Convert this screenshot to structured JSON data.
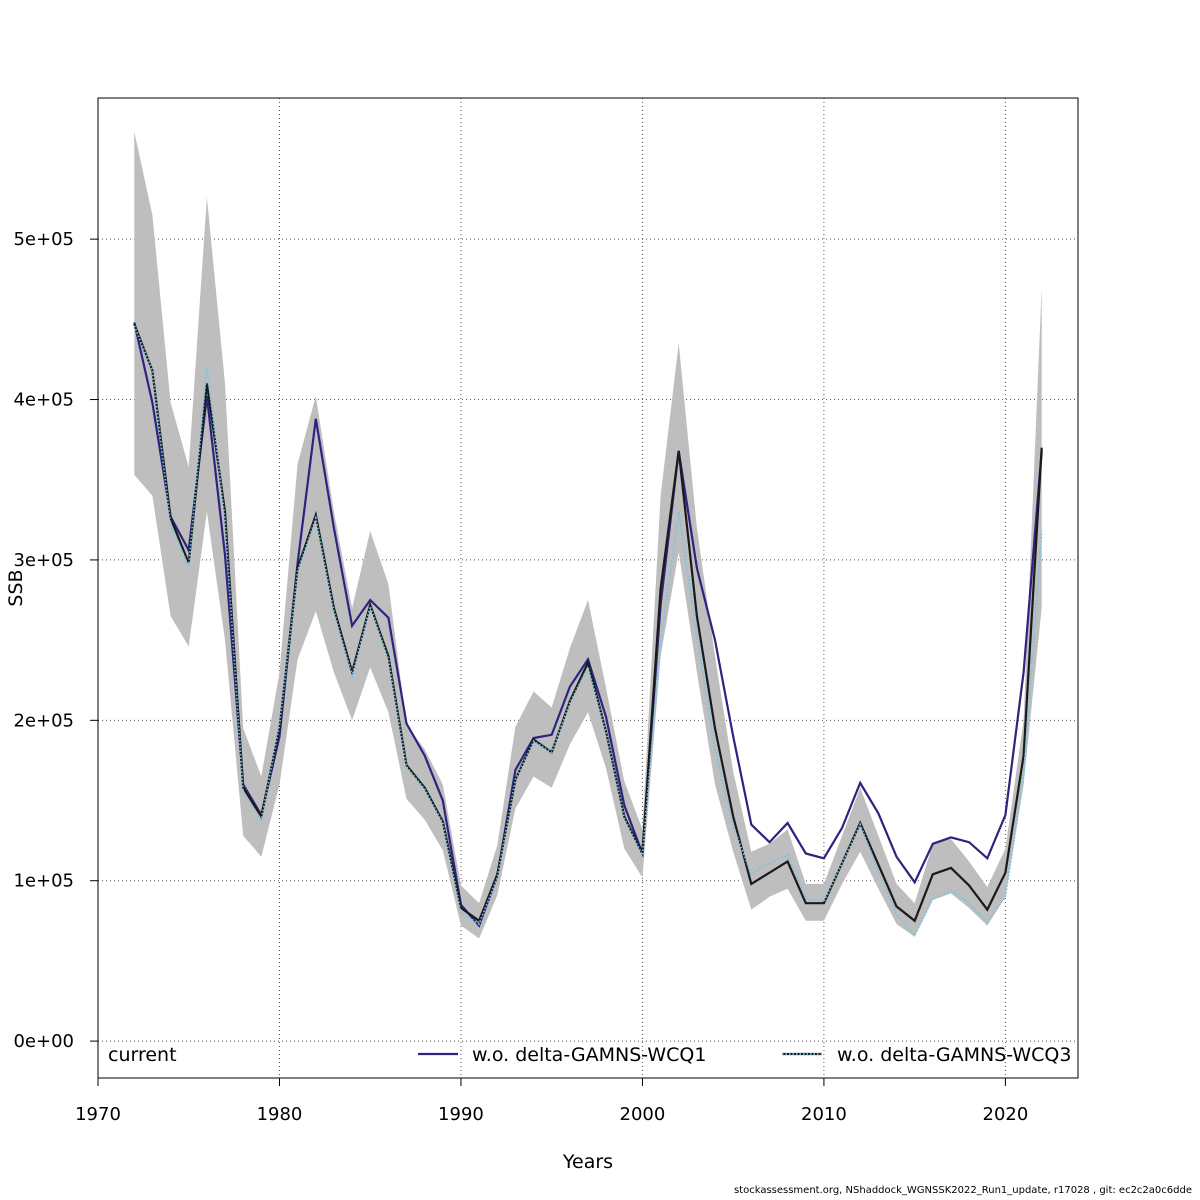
{
  "chart_data": {
    "type": "line",
    "xlabel": "Years",
    "ylabel": "SSB",
    "xlim": [
      1970,
      2024
    ],
    "ylim": [
      -23000,
      588000
    ],
    "x_ticks": [
      1970,
      1980,
      1990,
      2000,
      2010,
      2020
    ],
    "y_ticks": [
      0,
      100000,
      200000,
      300000,
      400000,
      500000
    ],
    "y_tick_labels": [
      "0e+00",
      "1e+05",
      "2e+05",
      "3e+05",
      "4e+05",
      "5e+05"
    ],
    "grid": true,
    "legend_position": "bottom",
    "years": [
      1972,
      1973,
      1974,
      1975,
      1976,
      1977,
      1978,
      1979,
      1980,
      1981,
      1982,
      1983,
      1984,
      1985,
      1986,
      1987,
      1988,
      1989,
      1990,
      1991,
      1992,
      1993,
      1994,
      1995,
      1996,
      1997,
      1998,
      1999,
      2000,
      2001,
      2002,
      2003,
      2004,
      2005,
      2006,
      2007,
      2008,
      2009,
      2010,
      2011,
      2012,
      2013,
      2014,
      2015,
      2016,
      2017,
      2018,
      2019,
      2020,
      2021,
      2022
    ],
    "confidence_band": {
      "color": "#bebebe",
      "lower": [
        353000,
        340000,
        265000,
        246000,
        330000,
        250000,
        128000,
        115000,
        160000,
        238000,
        268000,
        230000,
        200000,
        233000,
        205000,
        151000,
        138000,
        119000,
        72000,
        64000,
        91000,
        145000,
        165000,
        158000,
        185000,
        205000,
        170000,
        120000,
        102000,
        240000,
        305000,
        230000,
        160000,
        118000,
        82000,
        90000,
        95000,
        75000,
        75000,
        98000,
        118000,
        95000,
        73000,
        65000,
        88000,
        92000,
        83000,
        72000,
        90000,
        160000,
        270000
      ],
      "upper": [
        567000,
        515000,
        398000,
        358000,
        526000,
        410000,
        195000,
        165000,
        230000,
        360000,
        402000,
        330000,
        270000,
        318000,
        285000,
        197000,
        182000,
        160000,
        97000,
        86000,
        122000,
        196000,
        218000,
        208000,
        245000,
        275000,
        220000,
        162000,
        132000,
        340000,
        435000,
        320000,
        240000,
        168000,
        118000,
        123000,
        132000,
        98000,
        98000,
        128000,
        158000,
        128000,
        98000,
        86000,
        123000,
        126000,
        112000,
        96000,
        120000,
        200000,
        470000
      ]
    },
    "series": [
      {
        "name": "current",
        "color": "#1a1a1a",
        "dash": "solid",
        "values": [
          447000,
          418000,
          326000,
          298000,
          410000,
          330000,
          158000,
          140000,
          195000,
          295000,
          328000,
          270000,
          230000,
          272000,
          240000,
          172000,
          158000,
          137000,
          83000,
          75000,
          104000,
          163000,
          188000,
          180000,
          212000,
          236000,
          193000,
          140000,
          117000,
          282000,
          368000,
          265000,
          195000,
          140000,
          98000,
          105000,
          112000,
          86000,
          86000,
          111000,
          136000,
          110000,
          84000,
          75000,
          104000,
          108000,
          97000,
          82000,
          105000,
          178000,
          370000
        ]
      },
      {
        "name": "w.o. delta-GAMNS-WCQ1",
        "color": "#2e2380",
        "dash": "solid",
        "values": [
          448000,
          398000,
          327000,
          306000,
          402000,
          303000,
          160000,
          141000,
          190000,
          298000,
          388000,
          320000,
          259000,
          275000,
          264000,
          198000,
          178000,
          150000,
          85000,
          72000,
          103000,
          169000,
          189000,
          191000,
          221000,
          238000,
          202000,
          147000,
          117000,
          272000,
          368000,
          295000,
          250000,
          190000,
          135000,
          124000,
          136000,
          117000,
          114000,
          133000,
          161000,
          142000,
          115000,
          99000,
          123000,
          127000,
          124000,
          114000,
          141000,
          230000,
          368000
        ]
      },
      {
        "name": "w.o. delta-GAMNS-WCQ3",
        "color": "#6ec6e6",
        "dash": "dotted",
        "values": [
          446000,
          418000,
          322000,
          296000,
          420000,
          325000,
          155000,
          138000,
          197000,
          293000,
          326000,
          268000,
          228000,
          271000,
          238000,
          171000,
          157000,
          136000,
          80000,
          73000,
          102000,
          163000,
          187000,
          180000,
          211000,
          233000,
          193000,
          139000,
          116000,
          248000,
          330000,
          253000,
          182000,
          134000,
          104000,
          111000,
          116000,
          89000,
          87000,
          111000,
          135000,
          106000,
          79000,
          66000,
          89000,
          94000,
          86000,
          74000,
          90000,
          165000,
          318000
        ]
      }
    ]
  },
  "footer_text": "stockassessment.org, NShaddock_WGNSSK2022_Run1_update, r17028 , git: ec2c2a0c6dde"
}
